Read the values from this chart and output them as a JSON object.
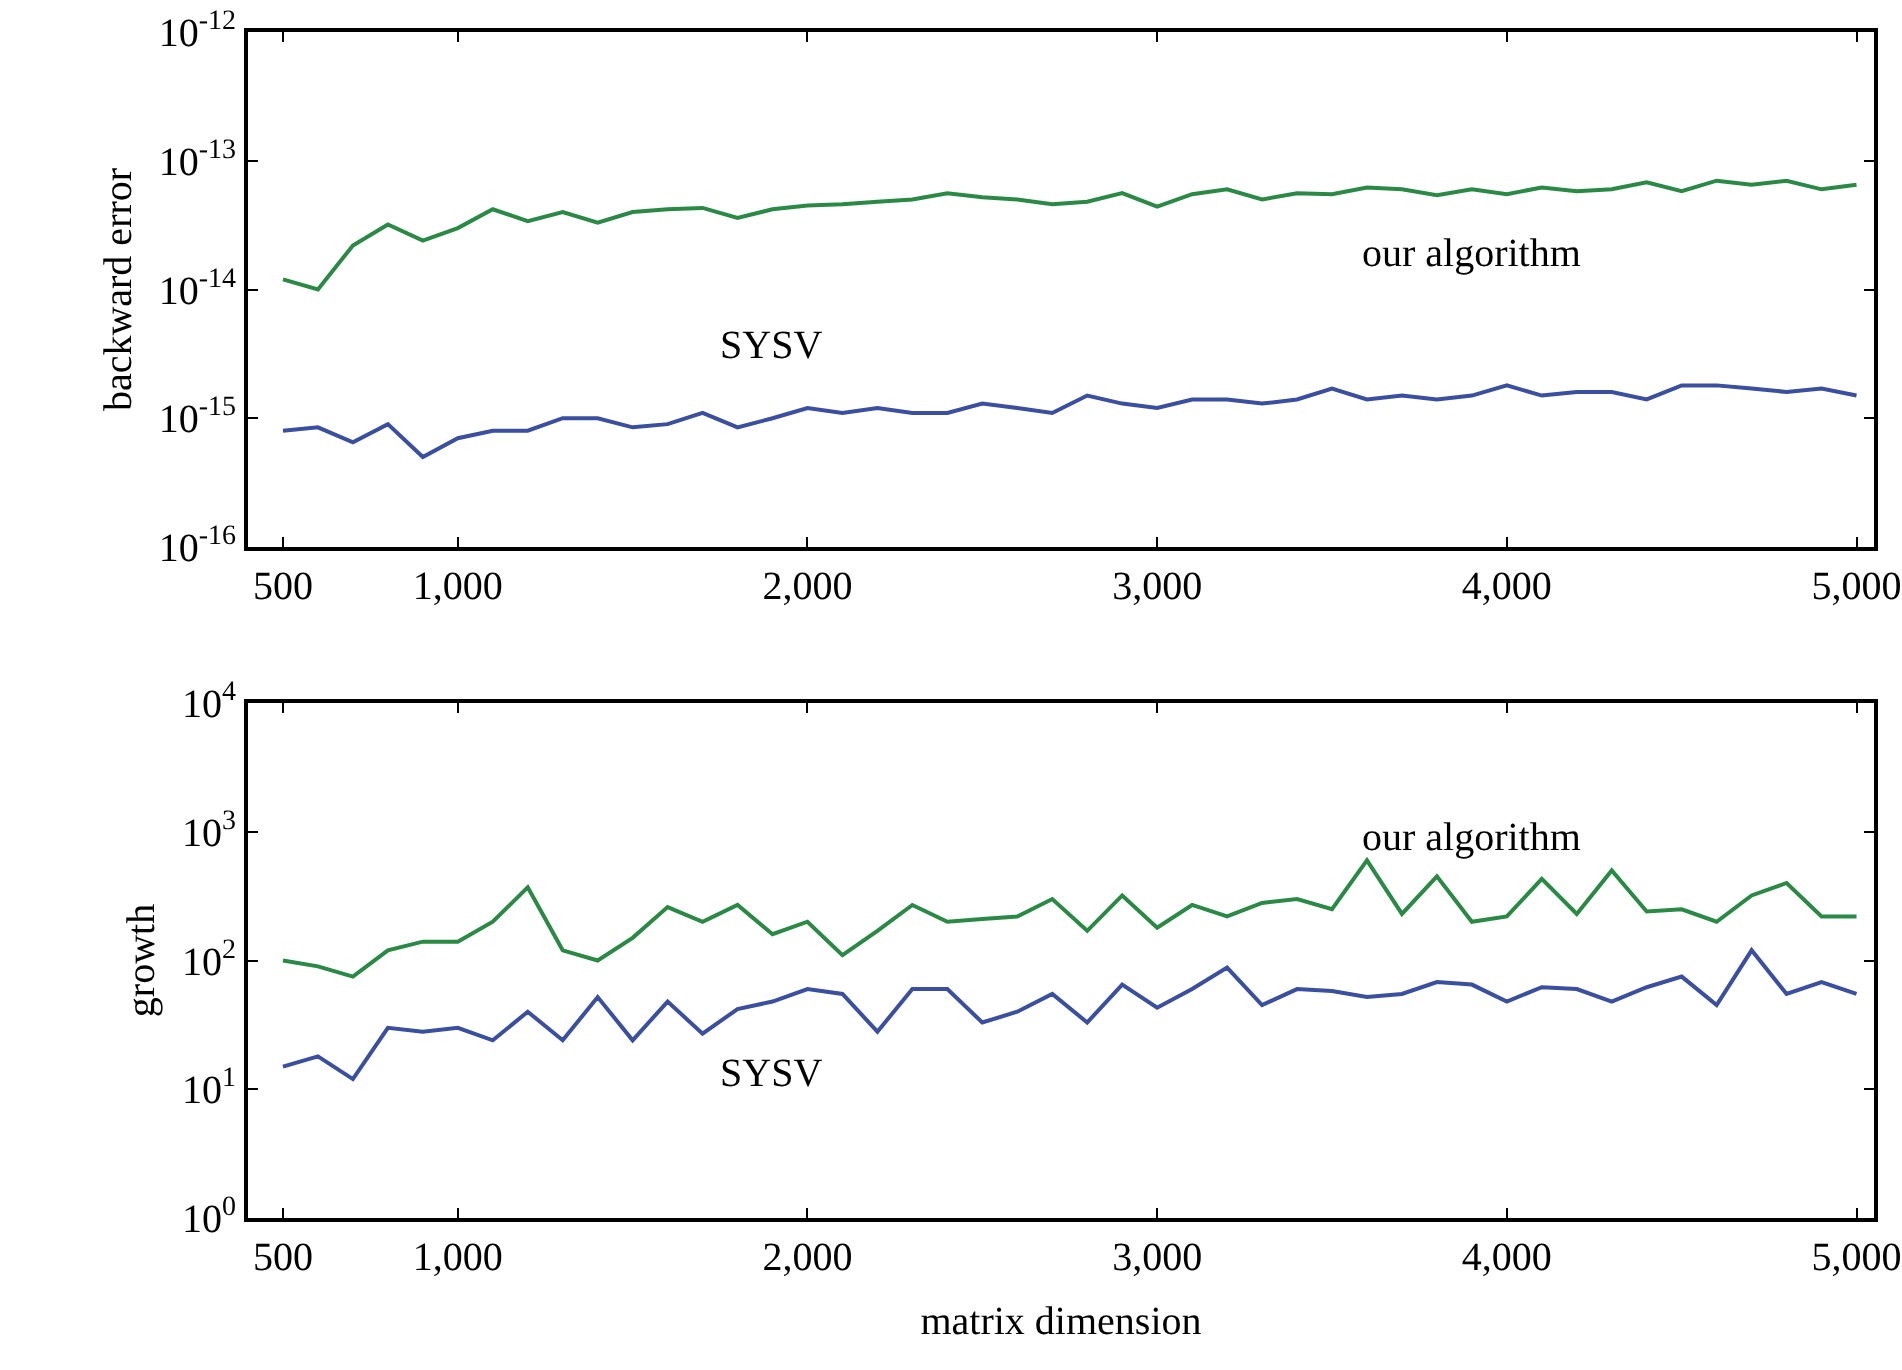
{
  "chart_data": [
    {
      "type": "line",
      "ylabel": "backward error",
      "x": [
        500,
        600,
        700,
        800,
        900,
        1000,
        1100,
        1200,
        1300,
        1400,
        1500,
        1600,
        1700,
        1800,
        1900,
        2000,
        2100,
        2200,
        2300,
        2400,
        2500,
        2600,
        2700,
        2800,
        2900,
        3000,
        3100,
        3200,
        3300,
        3400,
        3500,
        3600,
        3700,
        3800,
        3900,
        4000,
        4100,
        4200,
        4300,
        4400,
        4500,
        4600,
        4700,
        4800,
        4900,
        5000
      ],
      "series": [
        {
          "name": "our algorithm",
          "color": "#2a8a45",
          "values": [
            1.2e-14,
            1e-14,
            2.2e-14,
            3.2e-14,
            2.4e-14,
            3e-14,
            4.2e-14,
            3.4e-14,
            4e-14,
            3.3e-14,
            4e-14,
            4.2e-14,
            4.3e-14,
            3.6e-14,
            4.2e-14,
            4.5e-14,
            4.6e-14,
            4.8e-14,
            5e-14,
            5.6e-14,
            5.2e-14,
            5e-14,
            4.6e-14,
            4.8e-14,
            5.6e-14,
            4.4e-14,
            5.5e-14,
            6e-14,
            5e-14,
            5.6e-14,
            5.5e-14,
            6.2e-14,
            6e-14,
            5.4e-14,
            6e-14,
            5.5e-14,
            6.2e-14,
            5.8e-14,
            6e-14,
            6.8e-14,
            5.8e-14,
            7e-14,
            6.5e-14,
            7e-14,
            6e-14,
            6.5e-14
          ]
        },
        {
          "name": "SYSV",
          "color": "#3a4fa0",
          "values": [
            8e-16,
            8.5e-16,
            6.5e-16,
            9e-16,
            5e-16,
            7e-16,
            8e-16,
            8e-16,
            1e-15,
            1e-15,
            8.5e-16,
            9e-16,
            1.1e-15,
            8.5e-16,
            1e-15,
            1.2e-15,
            1.1e-15,
            1.2e-15,
            1.1e-15,
            1.1e-15,
            1.3e-15,
            1.2e-15,
            1.1e-15,
            1.5e-15,
            1.3e-15,
            1.2e-15,
            1.4e-15,
            1.4e-15,
            1.3e-15,
            1.4e-15,
            1.7e-15,
            1.4e-15,
            1.5e-15,
            1.4e-15,
            1.5e-15,
            1.8e-15,
            1.5e-15,
            1.6e-15,
            1.6e-15,
            1.4e-15,
            1.8e-15,
            1.8e-15,
            1.7e-15,
            1.6e-15,
            1.7e-15,
            1.5e-15
          ]
        }
      ],
      "xlim": [
        400,
        5050
      ],
      "xticks": [
        500,
        {
          "value": 1000,
          "label": "1,000"
        },
        {
          "value": 2000,
          "label": "2,000"
        },
        {
          "value": 3000,
          "label": "3,000"
        },
        {
          "value": 4000,
          "label": "4,000"
        },
        {
          "value": 5000,
          "label": "5,000"
        }
      ],
      "ylim": [
        1e-16,
        1e-12
      ],
      "yticks": [
        {
          "value": 1e-16,
          "label": "10$^{-16}$"
        },
        {
          "value": 1e-15,
          "label": "10$^{-15}$"
        },
        {
          "value": 1e-14,
          "label": "10$^{-14}$"
        },
        {
          "value": 1e-13,
          "label": "10$^{-13}$"
        },
        {
          "value": 1e-12,
          "label": "10$^{-12}$"
        }
      ],
      "log": "y",
      "grid": false,
      "legend": false,
      "marker": "none",
      "line_style": "solid"
    },
    {
      "type": "line",
      "ylabel": "growth",
      "xlabel": "matrix dimension",
      "x": [
        500,
        600,
        700,
        800,
        900,
        1000,
        1100,
        1200,
        1300,
        1400,
        1500,
        1600,
        1700,
        1800,
        1900,
        2000,
        2100,
        2200,
        2300,
        2400,
        2500,
        2600,
        2700,
        2800,
        2900,
        3000,
        3100,
        3200,
        3300,
        3400,
        3500,
        3600,
        3700,
        3800,
        3900,
        4000,
        4100,
        4200,
        4300,
        4400,
        4500,
        4600,
        4700,
        4800,
        4900,
        5000
      ],
      "series": [
        {
          "name": "our algorithm",
          "color": "#2a8a45",
          "values": [
            100,
            90,
            75,
            120,
            140,
            140,
            200,
            370,
            120,
            100,
            150,
            260,
            200,
            270,
            160,
            200,
            110,
            170,
            270,
            200,
            210,
            220,
            300,
            170,
            320,
            180,
            270,
            220,
            280,
            300,
            250,
            600,
            230,
            450,
            200,
            220,
            430,
            230,
            500,
            240,
            250,
            200,
            320,
            400,
            220,
            220
          ]
        },
        {
          "name": "SYSV",
          "color": "#3a4fa0",
          "values": [
            15,
            18,
            12,
            30,
            28,
            30,
            24,
            40,
            24,
            52,
            24,
            48,
            27,
            42,
            48,
            60,
            55,
            28,
            60,
            60,
            33,
            40,
            55,
            33,
            65,
            43,
            60,
            88,
            45,
            60,
            58,
            52,
            55,
            68,
            65,
            48,
            62,
            60,
            48,
            62,
            75,
            45,
            120,
            55,
            68,
            55
          ]
        }
      ],
      "xlim": [
        400,
        5050
      ],
      "xticks": [
        500,
        {
          "value": 1000,
          "label": "1,000"
        },
        {
          "value": 2000,
          "label": "2,000"
        },
        {
          "value": 3000,
          "label": "3,000"
        },
        {
          "value": 4000,
          "label": "4,000"
        },
        {
          "value": 5000,
          "label": "5,000"
        }
      ],
      "ylim": [
        1,
        10000
      ],
      "yticks": [
        {
          "value": 1,
          "label": "10$^{0}$"
        },
        {
          "value": 10,
          "label": "10$^{1}$"
        },
        {
          "value": 100,
          "label": "10$^{2}$"
        },
        {
          "value": 1000,
          "label": "10$^{3}$"
        },
        {
          "value": 10000,
          "label": "10$^{4}$"
        }
      ],
      "log": "y",
      "grid": false,
      "legend": false,
      "marker": "none",
      "line_style": "solid"
    }
  ]
}
